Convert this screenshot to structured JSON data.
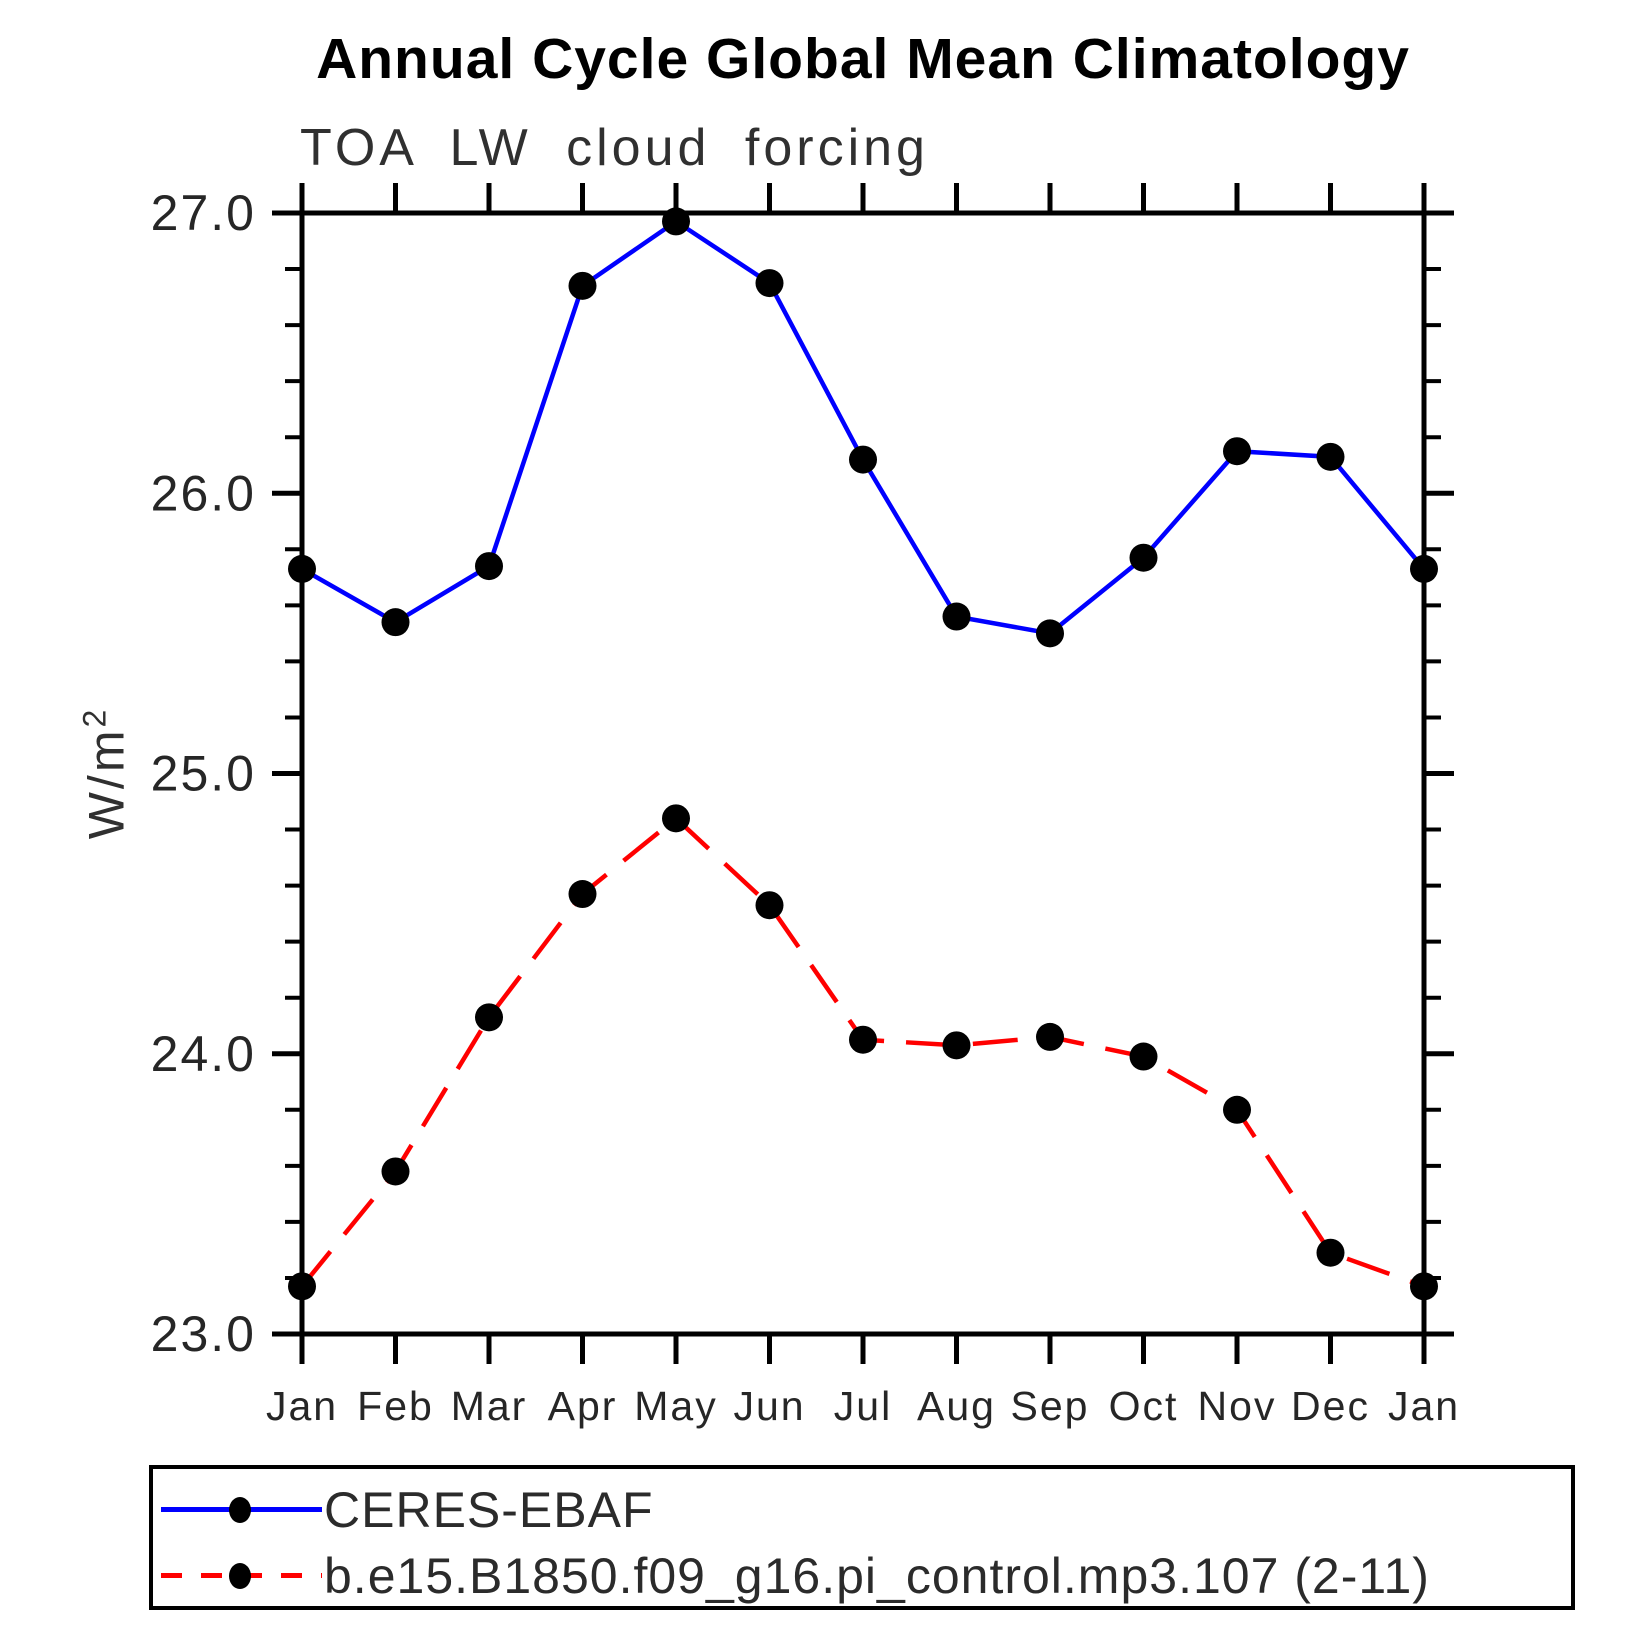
{
  "title": "Annual Cycle Global Mean Climatology",
  "subtitle": "TOA LW cloud forcing",
  "y_axis": {
    "label_base": "W/m",
    "label_sup": "2",
    "tick_labels": [
      "27.0",
      "26.0",
      "25.0",
      "24.0",
      "23.0"
    ]
  },
  "colors": {
    "ceres_line": "#0000ff",
    "model_line": "#ff0000",
    "marker": "#000000",
    "axis": "#000000",
    "tick_text": "#262626"
  },
  "chart_data": {
    "type": "line",
    "title": "Annual Cycle Global Mean Climatology",
    "subtitle": "TOA LW cloud forcing",
    "ylabel": "W/m²",
    "xlabel": "",
    "ylim": [
      23.0,
      27.0
    ],
    "y_major_step": 1.0,
    "y_minor_step": 0.2,
    "y_tick_labels": [
      "27.0",
      "26.0",
      "25.0",
      "24.0",
      "23.0"
    ],
    "grid": false,
    "legend_position": "bottom-left",
    "categories": [
      "Jan",
      "Feb",
      "Mar",
      "Apr",
      "May",
      "Jun",
      "Jul",
      "Aug",
      "Sep",
      "Oct",
      "Nov",
      "Dec",
      "Jan"
    ],
    "series": [
      {
        "name": "CERES-EBAF",
        "color": "#0000ff",
        "line_style": "solid",
        "marker": "filled-circle",
        "marker_color": "#000000",
        "values": [
          25.73,
          25.54,
          25.74,
          26.74,
          26.97,
          26.75,
          26.12,
          25.56,
          25.5,
          25.77,
          26.15,
          26.13,
          25.73
        ]
      },
      {
        "name": "b.e15.B1850.f09_g16.pi_control.mp3.107 (2-11)",
        "color": "#ff0000",
        "line_style": "dashed",
        "marker": "filled-circle",
        "marker_color": "#000000",
        "values": [
          23.17,
          23.58,
          24.13,
          24.57,
          24.84,
          24.53,
          24.05,
          24.03,
          24.06,
          23.99,
          23.8,
          23.29,
          23.17
        ]
      }
    ]
  }
}
